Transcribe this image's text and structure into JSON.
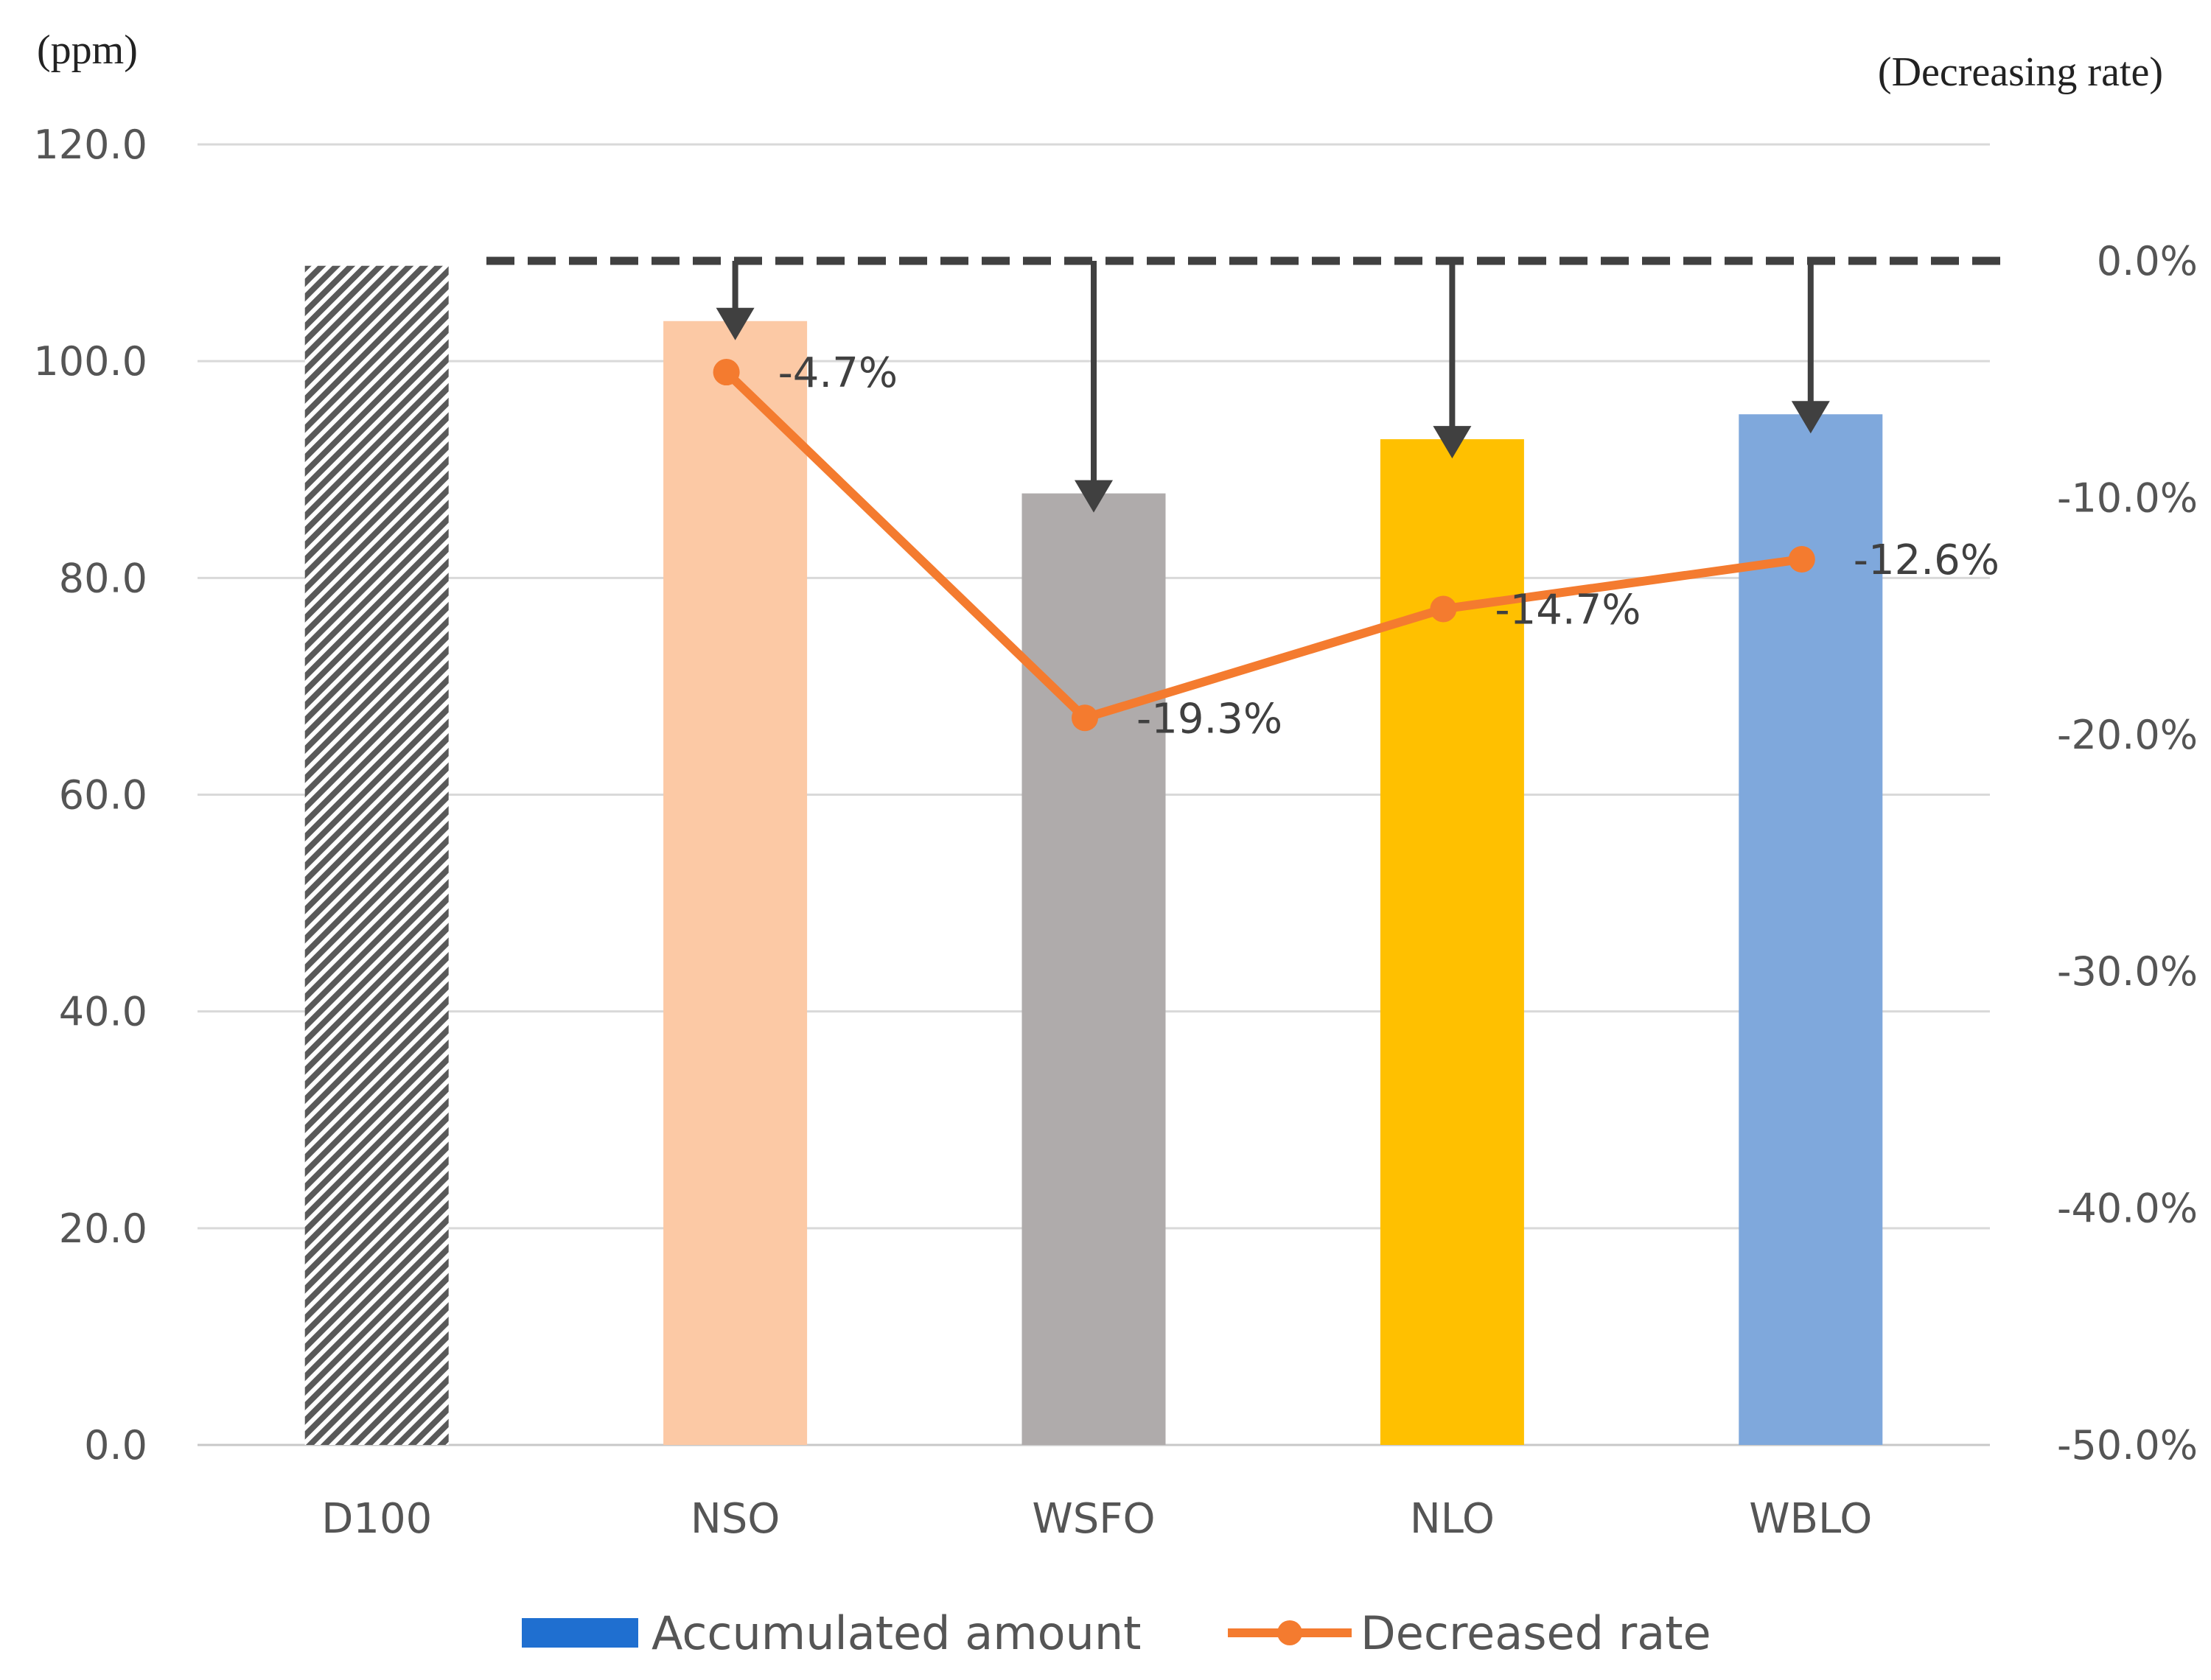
{
  "chart_data": {
    "type": "bar",
    "combo": "bar+line (secondary axis)",
    "categories": [
      "D100",
      "NSO",
      "WSFO",
      "NLO",
      "WBLO"
    ],
    "series": [
      {
        "name": "Accumulated amount",
        "type": "bar",
        "axis": "left",
        "values": [
          108.8,
          103.7,
          87.8,
          92.8,
          95.1
        ],
        "colors": [
          "#595959",
          "#FCC9A5",
          "#AFABAB",
          "#FFC000",
          "#7FA8DC"
        ],
        "hatched": [
          true,
          false,
          false,
          false,
          false
        ]
      },
      {
        "name": "Decreased rate",
        "type": "line",
        "axis": "right",
        "color": "#F47B2F",
        "x": [
          "NSO",
          "WSFO",
          "NLO",
          "WBLO"
        ],
        "values": [
          -4.7,
          -19.3,
          -14.7,
          -12.6
        ],
        "labels": [
          "-4.7%",
          "-19.3%",
          "-14.7%",
          "-12.6%"
        ]
      }
    ],
    "ylabel": "(ppm)",
    "y2label": "(Decreasing rate)",
    "ylim": [
      0,
      120
    ],
    "y2lim": [
      -50,
      5
    ],
    "yticks": [
      "0.0",
      "20.0",
      "40.0",
      "60.0",
      "80.0",
      "100.0",
      "120.0"
    ],
    "y2ticks": [
      "0.0%",
      "-10.0%",
      "-20.0%",
      "-30.0%",
      "-40.0%",
      "-50.0%"
    ],
    "reference_line": {
      "axis": "right",
      "value": 0,
      "style": "dashed"
    },
    "arrows_from_reference_to": [
      "NSO",
      "WSFO",
      "NLO",
      "WBLO"
    ],
    "grid": true,
    "legend": {
      "position": "bottom-center",
      "items": [
        {
          "label": "Accumulated amount",
          "color": "#1F6FD0",
          "marker": "bar"
        },
        {
          "label": "Decreased rate",
          "color": "#F47B2F",
          "marker": "line-dot"
        }
      ]
    }
  }
}
